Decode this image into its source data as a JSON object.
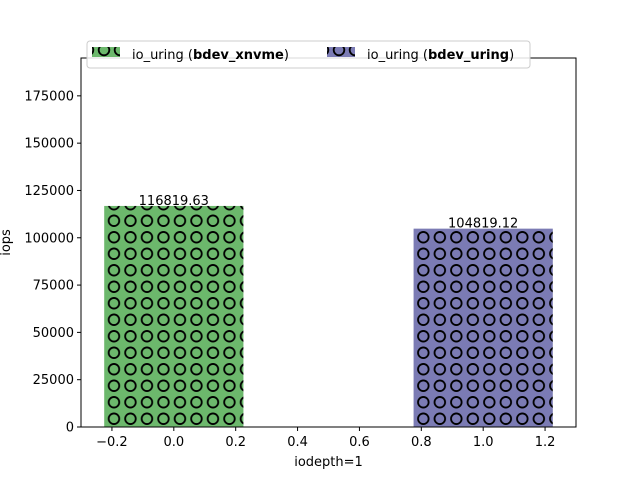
{
  "chart_data": {
    "type": "bar",
    "xlabel": "iodepth=1",
    "ylabel": "iops",
    "xlim": [
      -0.3,
      1.3
    ],
    "ylim": [
      0,
      195000
    ],
    "x_ticks": [
      -0.2,
      0.0,
      0.2,
      0.4,
      0.6,
      0.8,
      1.0,
      1.2
    ],
    "x_tick_labels": [
      "−0.2",
      "0.0",
      "0.2",
      "0.4",
      "0.6",
      "0.8",
      "1.0",
      "1.2"
    ],
    "y_ticks": [
      0,
      25000,
      50000,
      75000,
      100000,
      125000,
      150000,
      175000
    ],
    "y_tick_labels": [
      "0",
      "25000",
      "50000",
      "75000",
      "100000",
      "125000",
      "150000",
      "175000"
    ],
    "bar_width": 0.45,
    "series": [
      {
        "name_prefix": "io_uring (",
        "name_bold": "bdev_xnvme",
        "name_suffix": ")",
        "x": 0.0,
        "value": 116819.63,
        "value_label": "116819.63",
        "color": "#6cb86c",
        "hatch": "circles"
      },
      {
        "name_prefix": "io_uring (",
        "name_bold": "bdev_uring",
        "name_suffix": ")",
        "x": 1.0,
        "value": 104819.12,
        "value_label": "104819.12",
        "color": "#7b7bb4",
        "hatch": "circles"
      }
    ],
    "legend": {
      "placement": "top",
      "columns": 2
    },
    "grid": false
  }
}
